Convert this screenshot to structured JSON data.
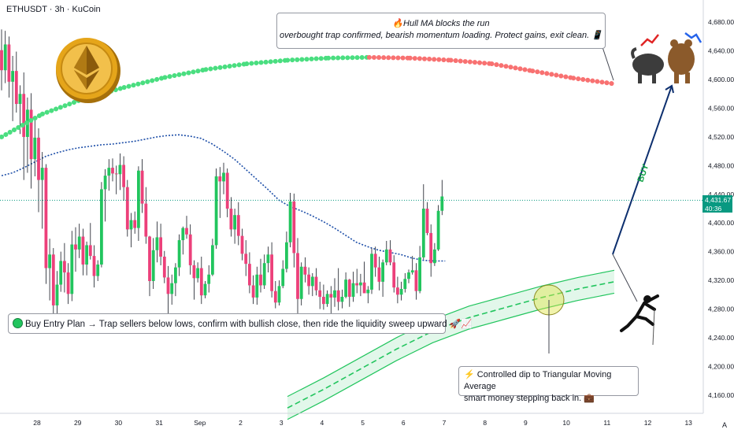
{
  "header": {
    "symbol_label": "ETHUSDT · 3h · KuCoin"
  },
  "price_axis": {
    "ticks": [
      "4,680.00",
      "4,640.00",
      "4,600.00",
      "4,560.00",
      "4,520.00",
      "4,480.00",
      "4,440.00",
      "4,400.00",
      "4,360.00",
      "4,320.00",
      "4,280.00",
      "4,240.00",
      "4,200.00",
      "4,160.00"
    ],
    "current_price": "4,431.67",
    "countdown": "40:36",
    "current_price_color": "#089981"
  },
  "time_axis": {
    "ticks": [
      "28",
      "29",
      "30",
      "31",
      "Sep",
      "2",
      "3",
      "4",
      "5",
      "6",
      "7",
      "8",
      "9",
      "10",
      "11",
      "12",
      "13"
    ],
    "auto_button": "A"
  },
  "annotations": {
    "hull_ma_title": "🔥Hull MA blocks the run",
    "hull_ma_text": "overbought trap confirmed, bearish momentum loading. Protect gains, exit clean. 📱",
    "buy_plan": "Buy Entry Plan → Trap sellers below lows, confirm with bullish close, then ride the liquidity sweep upward 🚀📈",
    "dip_line1": "⚡ Controlled dip to Triangular Moving Average",
    "dip_line2": "smart money stepping back in. 💼",
    "buy_label": "BUY"
  },
  "chart_data": {
    "type": "candlestick",
    "symbol": "ETHUSDT",
    "timeframe": "3h",
    "exchange": "KuCoin",
    "y_range": [
      4140,
      4700
    ],
    "current_price": 4431.67,
    "colors": {
      "up": "#22c55e",
      "down": "#ec407a",
      "hull_up": "#4ade80",
      "hull_down": "#f87171",
      "ma": "#1e4fa8",
      "band": "#22c55e",
      "arrow": "#0d2f6e"
    },
    "candles": [
      [
        4641,
        4670,
        4585,
        4613
      ],
      [
        4613,
        4668,
        4595,
        4649
      ],
      [
        4649,
        4660,
        4575,
        4597
      ],
      [
        4597,
        4633,
        4542,
        4612
      ],
      [
        4612,
        4639,
        4554,
        4566
      ],
      [
        4566,
        4592,
        4524,
        4580
      ],
      [
        4580,
        4610,
        4460,
        4520
      ],
      [
        4520,
        4575,
        4470,
        4558
      ],
      [
        4558,
        4581,
        4448,
        4489
      ],
      [
        4489,
        4544,
        4465,
        4519
      ],
      [
        4519,
        4532,
        4415,
        4460
      ],
      [
        4460,
        4499,
        4392,
        4477
      ],
      [
        4477,
        4482,
        4315,
        4337
      ],
      [
        4337,
        4378,
        4292,
        4356
      ],
      [
        4356,
        4365,
        4270,
        4285
      ],
      [
        4285,
        4333,
        4268,
        4314
      ],
      [
        4314,
        4360,
        4304,
        4347
      ],
      [
        4347,
        4372,
        4303,
        4331
      ],
      [
        4331,
        4344,
        4287,
        4301
      ],
      [
        4301,
        4389,
        4291,
        4370
      ],
      [
        4370,
        4394,
        4332,
        4363
      ],
      [
        4363,
        4399,
        4351,
        4381
      ],
      [
        4381,
        4392,
        4327,
        4342
      ],
      [
        4342,
        4374,
        4327,
        4369
      ],
      [
        4369,
        4400,
        4349,
        4354
      ],
      [
        4354,
        4369,
        4310,
        4326
      ],
      [
        4326,
        4348,
        4319,
        4342
      ],
      [
        4342,
        4457,
        4338,
        4447
      ],
      [
        4447,
        4475,
        4402,
        4466
      ],
      [
        4466,
        4489,
        4445,
        4477
      ],
      [
        4477,
        4490,
        4458,
        4469
      ],
      [
        4469,
        4480,
        4440,
        4468
      ],
      [
        4468,
        4497,
        4446,
        4481
      ],
      [
        4481,
        4493,
        4431,
        4450
      ],
      [
        4450,
        4460,
        4381,
        4391
      ],
      [
        4391,
        4414,
        4366,
        4404
      ],
      [
        4404,
        4416,
        4385,
        4393
      ],
      [
        4393,
        4479,
        4375,
        4473
      ],
      [
        4473,
        4489,
        4414,
        4427
      ],
      [
        4427,
        4450,
        4371,
        4381
      ],
      [
        4381,
        4382,
        4298,
        4319
      ],
      [
        4319,
        4379,
        4308,
        4362
      ],
      [
        4362,
        4402,
        4345,
        4380
      ],
      [
        4380,
        4399,
        4341,
        4353
      ],
      [
        4353,
        4361,
        4316,
        4324
      ],
      [
        4324,
        4340,
        4274,
        4301
      ],
      [
        4301,
        4328,
        4286,
        4316
      ],
      [
        4316,
        4344,
        4298,
        4338
      ],
      [
        4338,
        4384,
        4326,
        4376
      ],
      [
        4376,
        4395,
        4356,
        4393
      ],
      [
        4393,
        4410,
        4378,
        4384
      ],
      [
        4384,
        4398,
        4328,
        4341
      ],
      [
        4341,
        4348,
        4293,
        4323
      ],
      [
        4323,
        4345,
        4317,
        4337
      ],
      [
        4337,
        4353,
        4287,
        4299
      ],
      [
        4299,
        4319,
        4295,
        4315
      ],
      [
        4315,
        4341,
        4303,
        4328
      ],
      [
        4328,
        4378,
        4326,
        4369
      ],
      [
        4369,
        4476,
        4364,
        4465
      ],
      [
        4465,
        4478,
        4407,
        4458
      ],
      [
        4458,
        4484,
        4440,
        4470
      ],
      [
        4470,
        4476,
        4408,
        4420
      ],
      [
        4420,
        4436,
        4381,
        4391
      ],
      [
        4391,
        4420,
        4371,
        4411
      ],
      [
        4411,
        4429,
        4369,
        4382
      ],
      [
        4382,
        4392,
        4348,
        4357
      ],
      [
        4357,
        4376,
        4326,
        4343
      ],
      [
        4343,
        4359,
        4302,
        4313
      ],
      [
        4313,
        4327,
        4287,
        4296
      ],
      [
        4296,
        4339,
        4286,
        4328
      ],
      [
        4328,
        4350,
        4303,
        4313
      ],
      [
        4313,
        4356,
        4308,
        4344
      ],
      [
        4344,
        4367,
        4331,
        4356
      ],
      [
        4356,
        4373,
        4296,
        4305
      ],
      [
        4305,
        4319,
        4281,
        4289
      ],
      [
        4289,
        4320,
        4285,
        4312
      ],
      [
        4312,
        4348,
        4309,
        4336
      ],
      [
        4336,
        4388,
        4331,
        4373
      ],
      [
        4373,
        4442,
        4366,
        4430
      ],
      [
        4430,
        4441,
        4338,
        4358
      ],
      [
        4358,
        4379,
        4263,
        4294
      ],
      [
        4294,
        4345,
        4285,
        4339
      ],
      [
        4339,
        4352,
        4317,
        4328
      ],
      [
        4328,
        4338,
        4300,
        4312
      ],
      [
        4312,
        4330,
        4298,
        4325
      ],
      [
        4325,
        4337,
        4299,
        4306
      ],
      [
        4306,
        4318,
        4280,
        4297
      ],
      [
        4297,
        4314,
        4279,
        4287
      ],
      [
        4287,
        4306,
        4283,
        4301
      ],
      [
        4301,
        4312,
        4273,
        4296
      ],
      [
        4296,
        4323,
        4283,
        4306
      ],
      [
        4306,
        4337,
        4278,
        4290
      ],
      [
        4290,
        4307,
        4281,
        4297
      ],
      [
        4297,
        4331,
        4295,
        4321
      ],
      [
        4321,
        4322,
        4283,
        4297
      ],
      [
        4297,
        4332,
        4290,
        4316
      ],
      [
        4316,
        4336,
        4302,
        4313
      ],
      [
        4313,
        4329,
        4298,
        4317
      ],
      [
        4317,
        4346,
        4303,
        4302
      ],
      [
        4302,
        4312,
        4288,
        4307
      ],
      [
        4307,
        4365,
        4301,
        4357
      ],
      [
        4357,
        4367,
        4325,
        4338
      ],
      [
        4338,
        4353,
        4306,
        4318
      ],
      [
        4318,
        4349,
        4297,
        4345
      ],
      [
        4345,
        4375,
        4341,
        4363
      ],
      [
        4363,
        4376,
        4341,
        4345
      ],
      [
        4345,
        4355,
        4303,
        4310
      ],
      [
        4310,
        4325,
        4288,
        4300
      ],
      [
        4300,
        4318,
        4292,
        4308
      ],
      [
        4308,
        4330,
        4303,
        4322
      ],
      [
        4322,
        4335,
        4316,
        4331
      ],
      [
        4331,
        4354,
        4328,
        4334
      ],
      [
        4334,
        4344,
        4293,
        4305
      ],
      [
        4305,
        4368,
        4302,
        4352
      ],
      [
        4352,
        4454,
        4349,
        4420
      ],
      [
        4420,
        4429,
        4383,
        4386
      ],
      [
        4386,
        4398,
        4325,
        4344
      ],
      [
        4344,
        4372,
        4340,
        4363
      ],
      [
        4363,
        4425,
        4361,
        4417
      ],
      [
        4417,
        4460,
        4411,
        4437
      ]
    ],
    "moving_average_y": [
      4466,
      4470,
      4477,
      4485,
      4493,
      4498,
      4502,
      4505,
      4507,
      4509,
      4510,
      4512,
      4514,
      4517,
      4520,
      4522,
      4523,
      4521,
      4518,
      4510,
      4500,
      4489,
      4475,
      4461,
      4447,
      4432,
      4423,
      4417,
      4410,
      4402,
      4393,
      4383,
      4373,
      4367,
      4362,
      4359,
      4356,
      4351,
      4348,
      4347,
      4347
    ],
    "hull_ma_y": [
      4520,
      4552,
      4573,
      4589,
      4603,
      4614,
      4622,
      4627,
      4630,
      4631,
      4630,
      4627,
      4622,
      4612,
      4602,
      4594
    ],
    "band_center_y": [
      4142,
      4168,
      4196,
      4224,
      4249,
      4268,
      4282,
      4296,
      4308,
      4318
    ],
    "band_half_width": 16,
    "buy_target": 4592,
    "time_ticks_index": [
      0,
      11,
      22,
      33,
      44,
      55,
      66,
      77,
      88,
      99,
      110,
      121,
      132,
      143,
      154,
      165,
      176
    ]
  }
}
